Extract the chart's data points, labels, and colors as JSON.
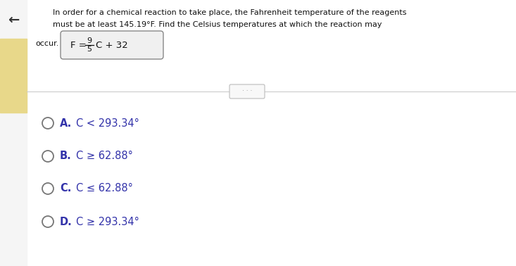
{
  "background_color": "#e8e8e8",
  "top_section_bg": "#f5f5f5",
  "bottom_section_bg": "#f5f5f5",
  "title_line1": "In order for a chemical reaction to take place, the Fahrenheit temperature of the reagents",
  "title_line2": "must be at least 145.19°F. Find the Celsius temperatures at which the reaction may",
  "occur_label": "occur.",
  "divider_color": "#cccccc",
  "dots_color": "#888888",
  "options": [
    {
      "label": "A.",
      "text": "C < 293.34°"
    },
    {
      "label": "B.",
      "text": "C ≥ 62.88°"
    },
    {
      "label": "C.",
      "text": "C ≤ 62.88°"
    },
    {
      "label": "D.",
      "text": "C ≥ 293.34°"
    }
  ],
  "option_color": "#3333aa",
  "circle_color": "#777777",
  "left_bar_color": "#e8d88a",
  "back_arrow_color": "#333333",
  "text_color": "#111111",
  "formula_box_edge": "#888888",
  "formula_box_face": "#f0f0f0"
}
